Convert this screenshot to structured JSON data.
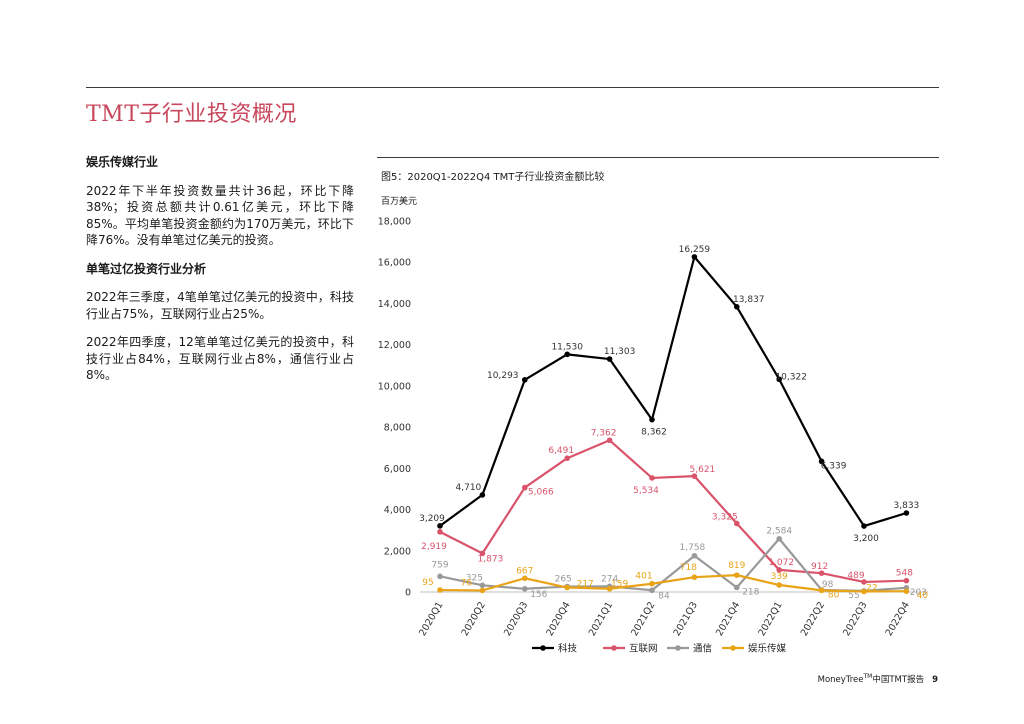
{
  "page": {
    "title": "TMT子行业投资概况",
    "footer_brand": "MoneyTree",
    "footer_tm": "TM",
    "footer_report": "中国TMT报告",
    "page_number": "9"
  },
  "left": {
    "heading1": "娱乐传媒行业",
    "para1": "2022年下半年投资数量共计36起，环比下降38%；投资总额共计0.61亿美元，环比下降85%。平均单笔投资金额约为170万美元，环比下降76%。没有单笔过亿美元的投资。",
    "heading2": "单笔过亿投资行业分析",
    "para2": "2022年三季度，4笔单笔过亿美元的投资中，科技行业占75%，互联网行业占25%。",
    "para3": "2022年四季度，12笔单笔过亿美元的投资中，科技行业占84%，互联网行业占8%，通信行业占8%。"
  },
  "figure": {
    "title": "图5：2020Q1-2022Q4  TMT子行业投资金额比较",
    "unit": "百万美元"
  },
  "chart_data": {
    "type": "line",
    "ylabel": "百万美元",
    "ylim": [
      0,
      18000
    ],
    "yticks": [
      0,
      2000,
      4000,
      6000,
      8000,
      10000,
      12000,
      14000,
      16000,
      18000
    ],
    "ytick_labels": [
      "0",
      "2,000",
      "4,000",
      "6,000",
      "8,000",
      "10,000",
      "12,000",
      "14,000",
      "16,000",
      "18,000"
    ],
    "grid": false,
    "legend_position": "bottom",
    "categories": [
      "2020Q1",
      "2020Q2",
      "2020Q3",
      "2020Q4",
      "2021Q1",
      "2021Q2",
      "2021Q3",
      "2021Q4",
      "2022Q1",
      "2022Q2",
      "2022Q3",
      "2022Q4"
    ],
    "series": [
      {
        "name": "科技",
        "color": "#000000",
        "values": [
          3209,
          4710,
          10293,
          11530,
          11303,
          8362,
          16259,
          13837,
          10322,
          6339,
          3200,
          3833
        ],
        "labels": [
          "3,209",
          "4,710",
          "10,293",
          "11,530",
          "11,303",
          "8,362",
          "16,259",
          "13,837",
          "10,322",
          "6,339",
          "3,200",
          "3,833"
        ]
      },
      {
        "name": "互联网",
        "color": "#d9546b",
        "values": [
          2919,
          1873,
          5066,
          6491,
          7362,
          5534,
          5621,
          3325,
          1072,
          912,
          489,
          548
        ],
        "labels": [
          "2,919",
          "1,873",
          "5,066",
          "6,491",
          "7,362",
          "5,534",
          "5,621",
          "3,325",
          "1,072",
          "912",
          "489",
          "548"
        ]
      },
      {
        "name": "通信",
        "color": "#999999",
        "values": [
          759,
          325,
          156,
          265,
          274,
          84,
          1758,
          218,
          2584,
          98,
          55,
          203
        ],
        "labels": [
          "759",
          "325",
          "156",
          "265",
          "274",
          "84",
          "1,758",
          "218",
          "2,584",
          "98",
          "55",
          "203"
        ]
      },
      {
        "name": "娱乐传媒",
        "color": "#e8a317",
        "values": [
          95,
          76,
          667,
          217,
          159,
          401,
          718,
          819,
          339,
          80,
          22,
          40
        ],
        "labels": [
          "95",
          "76",
          "667",
          "217",
          "159",
          "401",
          "718",
          "819",
          "339",
          "80",
          "22",
          "40"
        ]
      }
    ]
  }
}
